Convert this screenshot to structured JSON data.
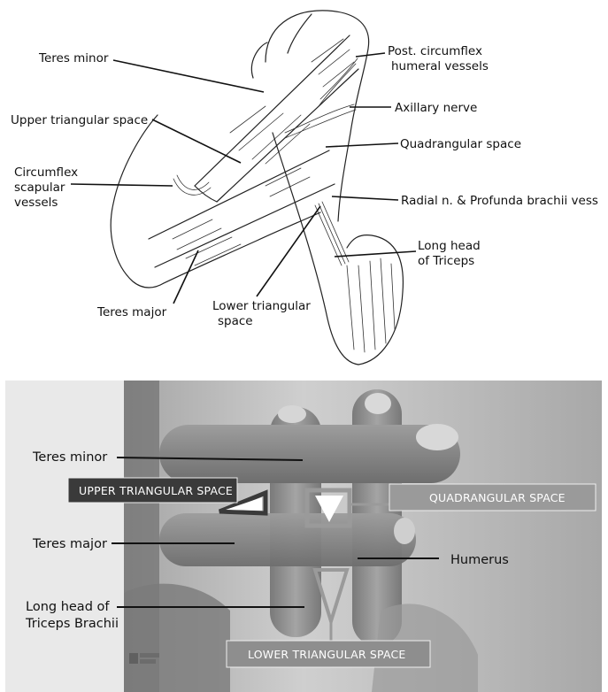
{
  "diagram": {
    "labels": {
      "teres_minor": "Teres minor",
      "upper_triangular_space": "Upper triangular space",
      "circumflex_scapular_line1": "Circumflex",
      "circumflex_scapular_line2": "scapular",
      "circumflex_scapular_line3": "vessels",
      "teres_major": "Teres major",
      "lower_triangular_line1": "Lower triangular",
      "lower_triangular_line2": "space",
      "post_circumflex_line1": "Post. circumflex",
      "post_circumflex_line2": "humeral vessels",
      "axillary_nerve": "Axillary nerve",
      "quadrangular_space": "Quadrangular space",
      "radial_nerve": "Radial n. & Profunda brachii vess",
      "long_head_line1": "Long head",
      "long_head_line2": "of Triceps"
    }
  },
  "photo": {
    "labels": {
      "teres_minor": "Teres minor",
      "teres_major": "Teres major",
      "humerus": "Humerus",
      "long_head_line1": "Long head of",
      "long_head_line2": "Triceps Brachii",
      "upper_triangular_space": "UPPER TRIANGULAR SPACE",
      "quadrangular_space": "QUADRANGULAR SPACE",
      "lower_triangular_space": "LOWER TRIANGULAR SPACE"
    },
    "colors": {
      "dark_box": "#3a3a3a",
      "light_box": "#9a9a9a",
      "box_text": "#ffffff"
    }
  }
}
